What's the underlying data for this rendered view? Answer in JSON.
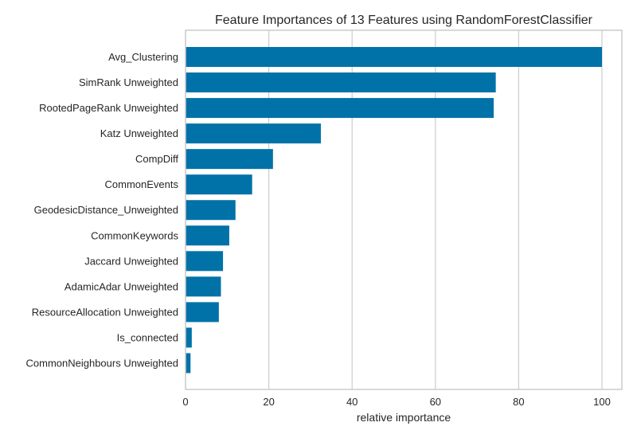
{
  "chart_data": {
    "type": "bar",
    "orientation": "horizontal",
    "title": "Feature Importances of 13 Features using RandomForestClassifier",
    "xlabel": "relative importance",
    "ylabel": "",
    "xlim": [
      0,
      105
    ],
    "xticks": [
      0,
      20,
      40,
      60,
      80,
      100
    ],
    "grid": true,
    "bar_color": "#0072a8",
    "categories": [
      "Avg_Clustering",
      "SimRank Unweighted",
      "RootedPageRank Unweighted",
      "Katz Unweighted",
      "CompDiff",
      "CommonEvents",
      "GeodesicDistance_Unweighted",
      "CommonKeywords",
      "Jaccard Unweighted",
      "AdamicAdar Unweighted",
      "ResourceAllocation Unweighted",
      "Is_connected",
      "CommonNeighbours Unweighted"
    ],
    "values": [
      100,
      74.5,
      74.0,
      32.5,
      21.0,
      16.0,
      12.0,
      10.5,
      9.0,
      8.5,
      8.0,
      1.5,
      1.2
    ]
  }
}
